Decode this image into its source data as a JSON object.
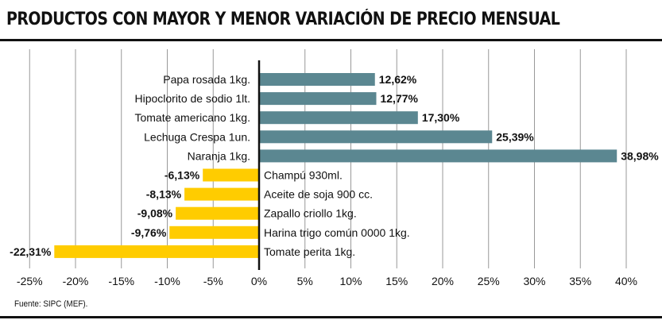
{
  "title": "PRODUCTOS CON MAYOR Y MENOR VARIACIÓN DE PRECIO MENSUAL",
  "source": "Fuente: SIPC (MEF).",
  "colors": {
    "positive": "#5b8791",
    "negative": "#ffcc00",
    "grid": "#999999",
    "axis": "#111111"
  },
  "chart_data": {
    "type": "bar",
    "orientation": "horizontal",
    "title": "PRODUCTOS CON MAYOR Y MENOR VARIACIÓN DE PRECIO MENSUAL",
    "xlim": [
      -25,
      40
    ],
    "xticks": [
      -25,
      -20,
      -15,
      -10,
      -5,
      0,
      5,
      10,
      15,
      20,
      25,
      30,
      35,
      40
    ],
    "xtick_labels": [
      "-25%",
      "-20%",
      "-15%",
      "-10%",
      "-5%",
      "0%",
      "5%",
      "10%",
      "15%",
      "20%",
      "25%",
      "30%",
      "35%",
      "40%"
    ],
    "grid": "vertical",
    "categories": [
      "Papa rosada 1kg.",
      "Hipoclorito de sodio 1lt.",
      "Tomate americano 1kg.",
      "Lechuga Crespa 1un.",
      "Naranja 1kg.",
      "Champú 930ml.",
      "Aceite de soja 900 cc.",
      "Zapallo criollo 1kg.",
      "Harina trigo común 0000 1kg.",
      "Tomate perita 1kg."
    ],
    "values": [
      12.62,
      12.77,
      17.3,
      25.39,
      38.98,
      -6.13,
      -8.13,
      -9.08,
      -9.76,
      -22.31
    ],
    "value_labels": [
      "12,62%",
      "12,77%",
      "17,30%",
      "25,39%",
      "38,98%",
      "-6,13%",
      "-8,13%",
      "-9,08%",
      "-9,76%",
      "-22,31%"
    ]
  }
}
